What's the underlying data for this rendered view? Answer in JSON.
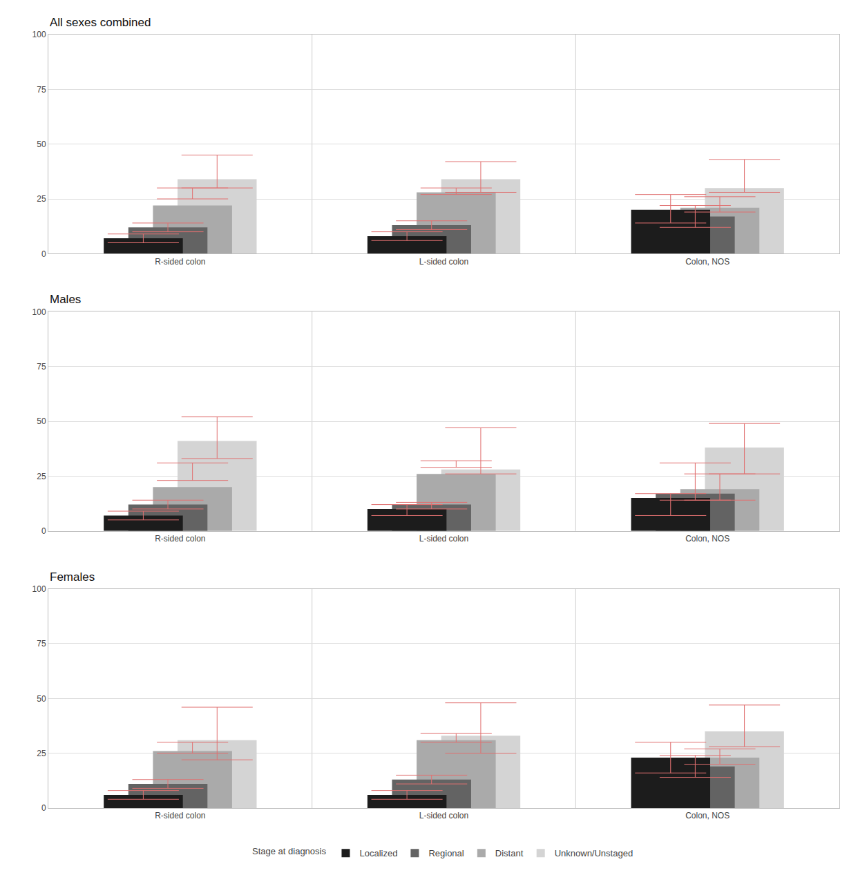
{
  "chart_data": [
    {
      "type": "bar",
      "title": "All sexes combined",
      "categories": [
        "R-sided colon",
        "L-sided colon",
        "Colon, NOS"
      ],
      "series": [
        {
          "name": "Localized",
          "color": "#1c1c1c",
          "values": [
            7,
            8,
            20
          ],
          "errors": [
            [
              5,
              9
            ],
            [
              6,
              10
            ],
            [
              14,
              27
            ]
          ]
        },
        {
          "name": "Regional",
          "color": "#636363",
          "values": [
            12,
            13,
            17
          ],
          "errors": [
            [
              10,
              14
            ],
            [
              11,
              15
            ],
            [
              12,
              22
            ]
          ]
        },
        {
          "name": "Distant",
          "color": "#aaaaaa",
          "values": [
            22,
            28,
            21
          ],
          "errors": [
            [
              25,
              30
            ],
            [
              27,
              30
            ],
            [
              19,
              26
            ]
          ]
        },
        {
          "name": "Unknown/Unstaged",
          "color": "#d4d4d4",
          "values": [
            34,
            34,
            30
          ],
          "errors": [
            [
              30,
              45
            ],
            [
              28,
              42
            ],
            [
              28,
              43
            ]
          ]
        }
      ],
      "ylim": [
        0,
        100
      ],
      "yticks": [
        0,
        25,
        50,
        75,
        100
      ],
      "grid": true,
      "legend": "bottom"
    },
    {
      "type": "bar",
      "title": "Males",
      "categories": [
        "R-sided colon",
        "L-sided colon",
        "Colon, NOS"
      ],
      "series": [
        {
          "name": "Localized",
          "color": "#1c1c1c",
          "values": [
            7,
            10,
            15
          ],
          "errors": [
            [
              5,
              9
            ],
            [
              7,
              12
            ],
            [
              7,
              17
            ]
          ]
        },
        {
          "name": "Regional",
          "color": "#636363",
          "values": [
            12,
            12,
            17
          ],
          "errors": [
            [
              10,
              14
            ],
            [
              10,
              13
            ],
            [
              14,
              31
            ]
          ]
        },
        {
          "name": "Distant",
          "color": "#aaaaaa",
          "values": [
            20,
            26,
            19
          ],
          "errors": [
            [
              23,
              31
            ],
            [
              29,
              32
            ],
            [
              14,
              26
            ]
          ]
        },
        {
          "name": "Unknown/Unstaged",
          "color": "#d4d4d4",
          "values": [
            41,
            28,
            38
          ],
          "errors": [
            [
              33,
              52
            ],
            [
              26,
              47
            ],
            [
              26,
              49
            ]
          ]
        }
      ],
      "ylim": [
        0,
        100
      ],
      "yticks": [
        0,
        25,
        50,
        75,
        100
      ],
      "grid": true,
      "legend": "bottom"
    },
    {
      "type": "bar",
      "title": "Females",
      "categories": [
        "R-sided colon",
        "L-sided colon",
        "Colon, NOS"
      ],
      "series": [
        {
          "name": "Localized",
          "color": "#1c1c1c",
          "values": [
            6,
            6,
            23
          ],
          "errors": [
            [
              4,
              8
            ],
            [
              4,
              8
            ],
            [
              16,
              30
            ]
          ]
        },
        {
          "name": "Regional",
          "color": "#636363",
          "values": [
            11,
            13,
            19
          ],
          "errors": [
            [
              9,
              13
            ],
            [
              11,
              15
            ],
            [
              14,
              24
            ]
          ]
        },
        {
          "name": "Distant",
          "color": "#aaaaaa",
          "values": [
            26,
            31,
            23
          ],
          "errors": [
            [
              25,
              30
            ],
            [
              30,
              34
            ],
            [
              20,
              27
            ]
          ]
        },
        {
          "name": "Unknown/Unstaged",
          "color": "#d4d4d4",
          "values": [
            31,
            33,
            35
          ],
          "errors": [
            [
              22,
              46
            ],
            [
              25,
              48
            ],
            [
              28,
              47
            ]
          ]
        }
      ],
      "ylim": [
        0,
        100
      ],
      "yticks": [
        0,
        25,
        50,
        75,
        100
      ],
      "grid": true,
      "legend": "bottom",
      "annotations": [
        "Stage at diagnosis"
      ]
    }
  ]
}
